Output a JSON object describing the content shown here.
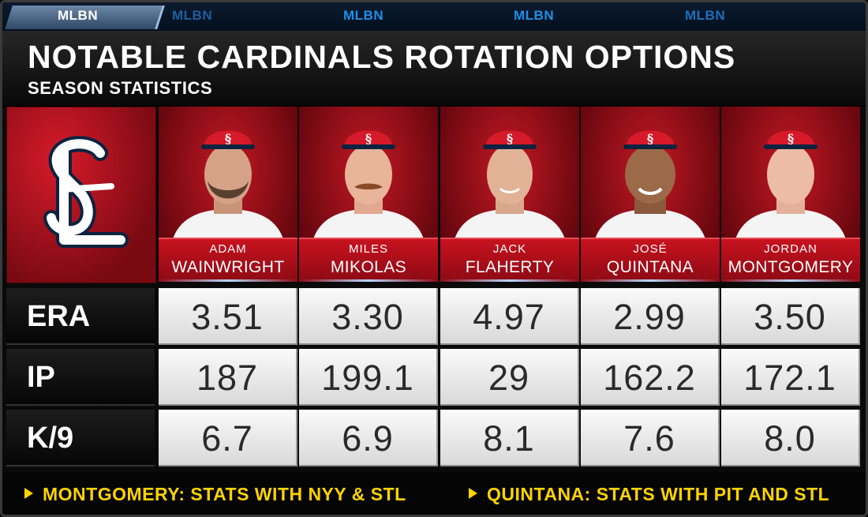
{
  "ticker": {
    "logos": [
      "MLBN",
      "MLBN",
      "MLBN",
      "MLBN",
      "MLBN"
    ]
  },
  "header": {
    "title": "NOTABLE CARDINALS ROTATION OPTIONS",
    "subtitle": "SEASON STATISTICS"
  },
  "team_logo": {
    "icon": "cardinals-stl-logo-icon",
    "text": "STL"
  },
  "colors": {
    "cardinals_red": "#c8121f",
    "footer_yellow": "#ffd400",
    "ticker_blue": "#1e8fe8"
  },
  "players": [
    {
      "first": "ADAM",
      "last": "WAINWRIGHT"
    },
    {
      "first": "MILES",
      "last": "MIKOLAS"
    },
    {
      "first": "JACK",
      "last": "FLAHERTY"
    },
    {
      "first": "JOSÉ",
      "last": "QUINTANA"
    },
    {
      "first": "JORDAN",
      "last": "MONTGOMERY"
    }
  ],
  "stats": {
    "rows": [
      {
        "label": "ERA",
        "values": [
          "3.51",
          "3.30",
          "4.97",
          "2.99",
          "3.50"
        ]
      },
      {
        "label": "IP",
        "values": [
          "187",
          "199.1",
          "29",
          "162.2",
          "172.1"
        ]
      },
      {
        "label": "K/9",
        "values": [
          "6.7",
          "6.9",
          "8.1",
          "7.6",
          "8.0"
        ]
      }
    ]
  },
  "footer": {
    "notes": [
      "MONTGOMERY: STATS WITH NYY & STL",
      "QUINTANA: STATS WITH PIT AND STL"
    ]
  }
}
